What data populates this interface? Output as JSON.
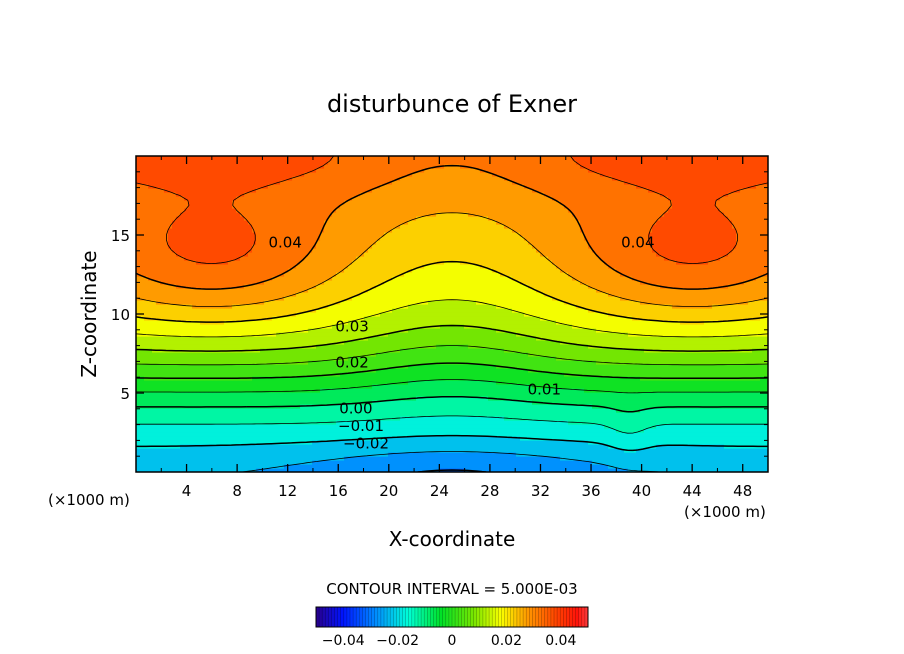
{
  "chart_data": {
    "type": "heatmap",
    "title": "disturbunce of Exner",
    "xlabel": "X-coordinate",
    "ylabel": "Z-coordinate",
    "x_unit_left": "(×1000 m)",
    "x_unit_right": "(×1000 m)",
    "xlim": [
      0,
      50
    ],
    "ylim": [
      0,
      20
    ],
    "x_ticks": [
      4,
      8,
      12,
      16,
      20,
      24,
      28,
      32,
      36,
      40,
      44,
      48
    ],
    "y_ticks": [
      5,
      10,
      15
    ],
    "grid": false,
    "contour_interval_text": "CONTOUR INTERVAL = 5.000E-03",
    "colorbar": {
      "min": -0.05,
      "max": 0.05,
      "tick_values": [
        -0.04,
        -0.02,
        0,
        0.02,
        0.04
      ],
      "tick_labels": [
        "−0.04",
        "−0.02",
        "0",
        "0.02",
        "0.04"
      ]
    },
    "colors": {
      "strong_red": "#ff3030",
      "red": "#ff1a00",
      "orange_red": "#ff5a00",
      "orange": "#ff8800",
      "yellow": "#ffff00",
      "green": "#20d000",
      "cyan": "#00ffd8",
      "blue": "#0030ff"
    },
    "contour_labels": [
      {
        "value": 0.04,
        "text": "0.04",
        "x": 11.8,
        "z": 14.2
      },
      {
        "value": 0.04,
        "text": "0.04",
        "x": 39.7,
        "z": 14.2
      },
      {
        "value": 0.03,
        "text": "0.03",
        "x": 17.1,
        "z": 8.9
      },
      {
        "value": 0.02,
        "text": "0.02",
        "x": 17.1,
        "z": 6.6
      },
      {
        "value": 0.01,
        "text": "0.01",
        "x": 32.3,
        "z": 4.9
      },
      {
        "value": 0.0,
        "text": "0.00",
        "x": 17.4,
        "z": 3.7
      },
      {
        "value": -0.01,
        "text": "−0.01",
        "x": 17.8,
        "z": 2.6
      },
      {
        "value": -0.02,
        "text": "−0.02",
        "x": 18.2,
        "z": 1.5
      }
    ]
  }
}
